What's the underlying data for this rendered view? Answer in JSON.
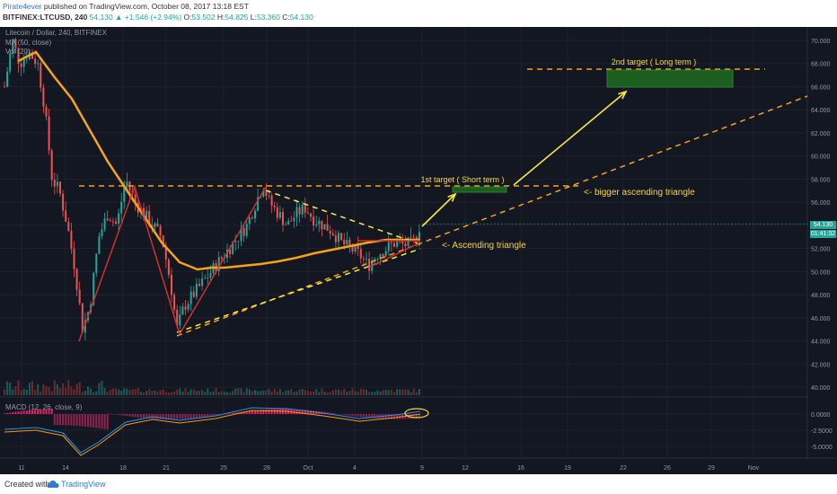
{
  "header": {
    "user": "Pirate4ever",
    "published": " published on TradingView.com, October 08, 2017 13:18 EST",
    "symbol": "BITFINEX:LTCUSD, 240",
    "last": "54.130",
    "change": "▲ +1.546 (+2.94%)",
    "o_label": "O:",
    "o": "53.502",
    "h_label": "H:",
    "h": "54.825",
    "l_label": "L:",
    "l": "53.360",
    "c_label": "C:",
    "c": "54.130"
  },
  "legend": {
    "title": "Litecoin / Dollar, 240, BITFINEX",
    "ma": "MA (50, close)",
    "vol": "Vol (20)",
    "macd": "MACD (12, 26, close, 9)"
  },
  "price_axis": {
    "ticks": [
      "70.000",
      "68.000",
      "66.000",
      "64.000",
      "62.000",
      "60.000",
      "58.000",
      "56.000",
      "54.000",
      "52.000",
      "50.000",
      "48.000",
      "46.000",
      "44.000",
      "42.000",
      "40.000"
    ],
    "current_price": "54.130",
    "countdown": "01:41:32",
    "macd_ticks": [
      "0.0000",
      "-2.5000",
      "-5.0000"
    ]
  },
  "time_axis": {
    "labels": [
      "11",
      "14",
      "18",
      "21",
      "25",
      "28",
      "Oct",
      "4",
      "9",
      "12",
      "16",
      "19",
      "22",
      "26",
      "29",
      "Nov"
    ]
  },
  "annotations": {
    "target2": "2nd target ( Long term )",
    "target1": "1st target ( Short term )",
    "bigger": "<- bigger ascending triangle",
    "ascending": "<- Ascending triangle"
  },
  "footer": {
    "created": "Created with",
    "brand": "TradingView"
  },
  "colors": {
    "background": "#131722",
    "up": "#26a69a",
    "down": "#ef5350",
    "ma": "#f7a21b",
    "annotation": "#f5d547",
    "target_box": "#1b5e20"
  }
}
